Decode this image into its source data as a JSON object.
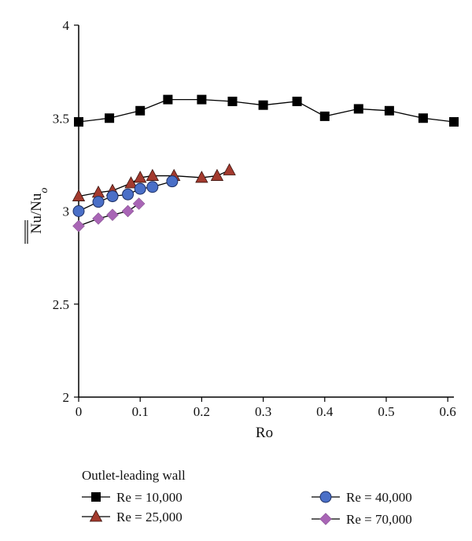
{
  "chart_data": {
    "type": "line",
    "title": "",
    "xlabel": "Ro",
    "ylabel": "Nu/Nu",
    "ylabel_subscript": "o",
    "xlim": [
      0,
      0.61
    ],
    "ylim": [
      2,
      4
    ],
    "x_ticks": [
      "0",
      "0.1",
      "0.2",
      "0.3",
      "0.4",
      "0.5",
      "0.6"
    ],
    "y_ticks": [
      "2",
      "2.5",
      "3",
      "3.5",
      "4"
    ],
    "grid": false,
    "legend_title": "Outlet-leading wall",
    "legend_position": "bottom",
    "series": [
      {
        "name": "Re = 10,000",
        "marker": "square",
        "color": "#000000",
        "x": [
          0.0,
          0.05,
          0.1,
          0.145,
          0.2,
          0.25,
          0.3,
          0.355,
          0.4,
          0.455,
          0.505,
          0.56,
          0.61
        ],
        "y": [
          3.48,
          3.5,
          3.54,
          3.6,
          3.6,
          3.59,
          3.57,
          3.59,
          3.51,
          3.55,
          3.54,
          3.5,
          3.48
        ]
      },
      {
        "name": "Re = 25,000",
        "marker": "triangle",
        "color": "#a33a2e",
        "x": [
          0.0,
          0.032,
          0.055,
          0.085,
          0.1,
          0.12,
          0.155,
          0.2,
          0.225,
          0.245
        ],
        "y": [
          3.08,
          3.1,
          3.11,
          3.15,
          3.18,
          3.19,
          3.19,
          3.18,
          3.19,
          3.22
        ]
      },
      {
        "name": "Re = 40,000",
        "marker": "circle",
        "color": "#4a6fc7",
        "x": [
          0.0,
          0.032,
          0.055,
          0.08,
          0.1,
          0.12,
          0.152
        ],
        "y": [
          3.0,
          3.05,
          3.08,
          3.09,
          3.12,
          3.13,
          3.16
        ]
      },
      {
        "name": "Re = 70,000",
        "marker": "diamond",
        "color": "#a865b5",
        "x": [
          0.0,
          0.032,
          0.055,
          0.08,
          0.098
        ],
        "y": [
          2.92,
          2.96,
          2.98,
          3.0,
          3.04
        ]
      }
    ]
  }
}
